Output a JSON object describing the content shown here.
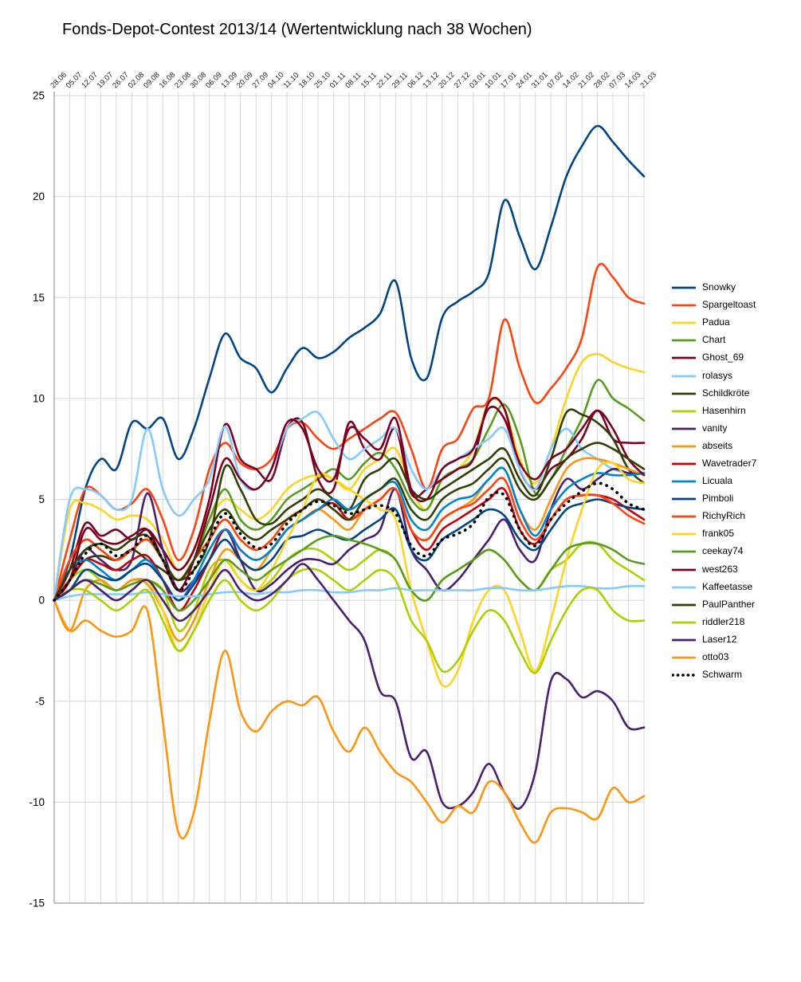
{
  "title": "Fonds-Depot-Contest 2013/14 (Wertentwicklung nach 38 Wochen)",
  "chart_data": {
    "type": "line",
    "title": "Fonds-Depot-Contest 2013/14 (Wertentwicklung nach 38 Wochen)",
    "xlabel": "",
    "ylabel": "",
    "ylim": [
      -15,
      25
    ],
    "yticks": [
      -15,
      -10,
      -5,
      0,
      5,
      10,
      15,
      20,
      25
    ],
    "grid": true,
    "legend_position": "right",
    "grid_color": "#d8d8d8",
    "axis_color": "#9a9a9a",
    "x": [
      "28.06",
      "05.07",
      "12.07",
      "19.07",
      "26.07",
      "02.08",
      "09.08",
      "16.08",
      "23.08",
      "30.08",
      "06.09",
      "13.09",
      "20.09",
      "27.09",
      "04.10",
      "11.10",
      "18.10",
      "25.10",
      "01.11",
      "08.11",
      "15.11",
      "22.11",
      "29.11",
      "06.12",
      "13.12",
      "20.12",
      "27.12",
      "03.01",
      "10.01",
      "17.01",
      "24.01",
      "31.01",
      "07.02",
      "14.02",
      "21.02",
      "28.02",
      "07.03",
      "14.03",
      "21.03"
    ],
    "series": [
      {
        "name": "Snowky",
        "color": "#004586",
        "style": "solid",
        "values": [
          0,
          2,
          5.5,
          7,
          6.5,
          8.8,
          8.5,
          9,
          7,
          8.5,
          11,
          13.2,
          12,
          11.5,
          10.3,
          11.5,
          12.5,
          12,
          12.3,
          13,
          13.5,
          14.2,
          15.8,
          12,
          11,
          14,
          14.8,
          15.3,
          16.2,
          19.8,
          18,
          16.4,
          18.5,
          21,
          22.5,
          23.5,
          22.7,
          21.8,
          21
        ]
      },
      {
        "name": "Spargeltoast",
        "color": "#FF420E",
        "style": "solid",
        "values": [
          0,
          3,
          5.5,
          5.2,
          4.5,
          4.8,
          5.5,
          4,
          2,
          3.5,
          6.5,
          7.8,
          6.8,
          6.5,
          7,
          8.5,
          8.8,
          8,
          7.5,
          8,
          8.5,
          9,
          9.3,
          7.5,
          5.5,
          7.5,
          8,
          9.5,
          10,
          13.9,
          11.5,
          9.8,
          10.5,
          11.5,
          13,
          16.5,
          16,
          15,
          14.7
        ]
      },
      {
        "name": "Padua",
        "color": "#FFD320",
        "style": "solid",
        "values": [
          0,
          4.5,
          4.8,
          4.5,
          4,
          4.2,
          4,
          3,
          1.5,
          2.5,
          4,
          5,
          4.5,
          4,
          4.5,
          5.5,
          6,
          6.2,
          6,
          5.5,
          6.5,
          7,
          7.5,
          5.5,
          4.5,
          6,
          6.5,
          7.5,
          9.8,
          9.5,
          7,
          5.8,
          7.5,
          10,
          11.8,
          12.2,
          11.8,
          11.5,
          11.3
        ]
      },
      {
        "name": "Chart",
        "color": "#579D1C",
        "style": "solid",
        "values": [
          0,
          2,
          3,
          2.5,
          2,
          2.5,
          3,
          2,
          1,
          2,
          4,
          5.5,
          4,
          3.5,
          4,
          5,
          5.5,
          6,
          6.5,
          6,
          6.8,
          7.3,
          6.5,
          5,
          4.5,
          6,
          6.5,
          7,
          8.5,
          9.7,
          8,
          5.3,
          6,
          7.5,
          9,
          10.9,
          10,
          9.5,
          8.9
        ]
      },
      {
        "name": "Ghost_69",
        "color": "#7E0021",
        "style": "solid",
        "values": [
          0,
          1.5,
          3.8,
          3.2,
          3.5,
          3,
          3.5,
          2.5,
          1.5,
          2.5,
          5,
          8.7,
          7,
          6.5,
          6,
          8.5,
          8.8,
          6,
          5.5,
          8.8,
          7.5,
          7,
          8.5,
          5.3,
          5.5,
          6,
          6.5,
          7,
          9.8,
          9.5,
          6.5,
          5.5,
          6.5,
          7,
          8,
          9.4,
          8,
          7.8,
          7.8
        ]
      },
      {
        "name": "rolasys",
        "color": "#83CAFF",
        "style": "solid",
        "values": [
          0,
          5,
          5.5,
          5.2,
          4.5,
          5,
          8.5,
          5.5,
          4.2,
          5,
          6,
          8.6,
          6,
          5.5,
          6.5,
          8.5,
          9,
          9.3,
          8,
          7,
          7.5,
          8,
          8.5,
          6.5,
          5.5,
          6.5,
          7,
          7.5,
          8,
          8.5,
          6.5,
          5.5,
          7.5,
          8.5,
          7.5,
          7,
          6.5,
          6.3,
          6.3
        ]
      },
      {
        "name": "Schildkröte",
        "color": "#314004",
        "style": "solid",
        "values": [
          0,
          1,
          2,
          2.2,
          2,
          2.5,
          2,
          1.5,
          1,
          1.5,
          3,
          6.6,
          5.5,
          4,
          3.8,
          4.5,
          5,
          5.5,
          5,
          4.5,
          6,
          6.5,
          7,
          5.5,
          5,
          5.5,
          6,
          6.5,
          7,
          7.5,
          6,
          5.2,
          7,
          9.3,
          9.2,
          8.8,
          8,
          6.5,
          5.8
        ]
      },
      {
        "name": "Hasenhirn",
        "color": "#AECF00",
        "style": "solid",
        "values": [
          0,
          1,
          1.5,
          1,
          0.5,
          1,
          1,
          0.5,
          -1.5,
          -0.5,
          1.5,
          2,
          1,
          0.5,
          1,
          2,
          2.5,
          2.5,
          2,
          1.5,
          2,
          2.5,
          2,
          0.5,
          0,
          1,
          1.5,
          2,
          2.5,
          2,
          1,
          0.5,
          1.5,
          2,
          2.8,
          2.8,
          2,
          1.5,
          1
        ]
      },
      {
        "name": "vanity",
        "color": "#4B1F6F",
        "style": "solid",
        "values": [
          0,
          1,
          2.5,
          2,
          1.5,
          2,
          5.3,
          2.5,
          0.5,
          1,
          2,
          3.5,
          2,
          0.5,
          0.8,
          1.5,
          2,
          2,
          1.8,
          2.5,
          3,
          3.5,
          5.5,
          2.5,
          1.5,
          0.5,
          1,
          2,
          3,
          4,
          2.5,
          2,
          4.5,
          6,
          5.5,
          6,
          6.5,
          6.3,
          6.3
        ]
      },
      {
        "name": "abseits",
        "color": "#FF950E",
        "style": "solid",
        "values": [
          0,
          -1.5,
          0.5,
          1,
          0.5,
          1,
          0.8,
          -0.5,
          -2,
          -1,
          1,
          2.5,
          2,
          1.5,
          2.5,
          3.5,
          4,
          4.5,
          4,
          3.5,
          4.5,
          5,
          5.5,
          3.5,
          3,
          4,
          4.5,
          5,
          6,
          6.5,
          4.5,
          3.5,
          5,
          6.5,
          7,
          7,
          6.8,
          6.5,
          6.2
        ]
      },
      {
        "name": "Wavetrader7",
        "color": "#C5000B",
        "style": "solid",
        "values": [
          0,
          1,
          2,
          1.8,
          1.5,
          2,
          2.2,
          1,
          -0.5,
          0.5,
          2,
          3.5,
          2.5,
          2,
          2.5,
          3.5,
          4,
          4.5,
          4.8,
          4,
          4.5,
          5,
          5.5,
          3.5,
          2.5,
          3.5,
          4,
          4.5,
          5,
          5.5,
          3.5,
          2.8,
          4,
          5,
          5.2,
          5.2,
          5,
          4.5,
          4
        ]
      },
      {
        "name": "Licuala",
        "color": "#0084D1",
        "style": "solid",
        "values": [
          0,
          1.5,
          2,
          1.5,
          1,
          1.5,
          2,
          1,
          0,
          1,
          2.5,
          3.5,
          2.5,
          2,
          2.5,
          3.5,
          4,
          4.5,
          5,
          4.5,
          5,
          5.5,
          5.8,
          4,
          3.5,
          4.5,
          5,
          5.2,
          6,
          6.5,
          4.5,
          3.2,
          4.5,
          5.5,
          6,
          6.3,
          6.2,
          6.2,
          6.3
        ]
      },
      {
        "name": "Pimboli",
        "color": "#004586",
        "style": "solid",
        "values": [
          0,
          0.5,
          1.5,
          1.2,
          1,
          1.5,
          1.8,
          1,
          0,
          0.8,
          2,
          3,
          2,
          1.5,
          2,
          3,
          3.2,
          3.5,
          3.2,
          3,
          3.5,
          4,
          4.5,
          2.5,
          2,
          3,
          3.5,
          4,
          4.5,
          4.2,
          3,
          2.5,
          3.5,
          4.5,
          4.8,
          5,
          4.8,
          4.6,
          4.5
        ]
      },
      {
        "name": "RichyRich",
        "color": "#FF420E",
        "style": "solid",
        "values": [
          0,
          2,
          3,
          2.5,
          2,
          2.5,
          3,
          2,
          1,
          2,
          3,
          4,
          3,
          2.5,
          3,
          4,
          4.5,
          5,
          4.5,
          4,
          4.5,
          5,
          5.5,
          3.5,
          3,
          4,
          4.5,
          4.8,
          5.5,
          6,
          4,
          3,
          4,
          5,
          5.2,
          5.2,
          4.8,
          4.2,
          3.8
        ]
      },
      {
        "name": "frank05",
        "color": "#FFD320",
        "style": "solid",
        "values": [
          0,
          0.5,
          1,
          0.5,
          0,
          0.5,
          1,
          -0.5,
          -2.5,
          -1.5,
          0.5,
          2,
          1,
          0.5,
          1.5,
          3,
          4.5,
          6.2,
          6,
          5.5,
          5,
          4.5,
          4,
          0.5,
          -2,
          -4.2,
          -3.5,
          -1,
          0.5,
          0.5,
          -1.5,
          -3.5,
          -1,
          2,
          4.5,
          6.5,
          6.8,
          6,
          5.8
        ]
      },
      {
        "name": "ceekay74",
        "color": "#579D1C",
        "style": "solid",
        "values": [
          0,
          0.5,
          1,
          0.8,
          0.5,
          0.8,
          1,
          0.5,
          -0.5,
          0,
          1,
          2,
          1.5,
          1,
          1.5,
          2,
          2.5,
          3,
          3.2,
          3,
          2.8,
          2.5,
          2,
          0.5,
          0,
          1,
          1.5,
          2,
          2.5,
          2,
          1,
          0.5,
          1.5,
          2.5,
          2.8,
          2.8,
          2.5,
          2,
          1.8
        ]
      },
      {
        "name": "west263",
        "color": "#7E0021",
        "style": "solid",
        "values": [
          0,
          1,
          3.5,
          3,
          2.8,
          3.2,
          3.5,
          2,
          0.5,
          2,
          4.5,
          7,
          6,
          5.5,
          6.5,
          8.8,
          8.5,
          6.5,
          6,
          8.5,
          8,
          7.5,
          9,
          5.5,
          5,
          6.5,
          7,
          7.5,
          9.5,
          9,
          6.8,
          6,
          7,
          7.5,
          8.5,
          9.4,
          8.5,
          7,
          6.2
        ]
      },
      {
        "name": "Kaffeetasse",
        "color": "#83CAFF",
        "style": "solid",
        "values": [
          0,
          0.2,
          0.3,
          0.3,
          0.3,
          0.3,
          0.4,
          0.3,
          0.2,
          0.2,
          0.3,
          0.4,
          0.4,
          0.3,
          0.4,
          0.4,
          0.5,
          0.5,
          0.4,
          0.4,
          0.5,
          0.5,
          0.6,
          0.5,
          0.5,
          0.5,
          0.5,
          0.5,
          0.6,
          0.6,
          0.5,
          0.5,
          0.6,
          0.7,
          0.7,
          0.6,
          0.6,
          0.7,
          0.7
        ]
      },
      {
        "name": "PaulPanther",
        "color": "#314004",
        "style": "solid",
        "values": [
          0,
          1.5,
          2.5,
          2.8,
          2.5,
          3,
          3.2,
          2,
          1,
          2,
          3.5,
          4.5,
          3.5,
          3,
          3.5,
          4,
          4.5,
          5,
          4.5,
          4,
          5,
          5.5,
          6,
          4.5,
          4,
          5,
          5.5,
          5.8,
          6.5,
          7,
          5.5,
          5,
          6,
          7,
          7.5,
          7.8,
          7.5,
          7,
          6.5
        ]
      },
      {
        "name": "riddler218",
        "color": "#AECF00",
        "style": "solid",
        "values": [
          0,
          0.5,
          0.5,
          0,
          -0.5,
          0,
          0.5,
          -1,
          -2.5,
          -1.5,
          0,
          1,
          0,
          -0.5,
          0,
          1,
          1.5,
          1.5,
          1,
          0.5,
          1,
          1.5,
          1,
          -1,
          -2,
          -3.5,
          -3,
          -1.5,
          -0.5,
          -1,
          -2.5,
          -3.6,
          -2,
          -0.5,
          0.5,
          0.5,
          -0.5,
          -1,
          -1
        ]
      },
      {
        "name": "Laser12",
        "color": "#4B1F6F",
        "style": "solid",
        "values": [
          0,
          0.5,
          1,
          0.5,
          0,
          0.5,
          1,
          0,
          -1,
          -0.5,
          0.5,
          1.5,
          0.5,
          0,
          0.3,
          1,
          1.8,
          1,
          0,
          -1,
          -2,
          -4.5,
          -5,
          -7.8,
          -7.5,
          -10,
          -10.2,
          -9.5,
          -8.1,
          -9.5,
          -10.3,
          -8.5,
          -4,
          -3.9,
          -4.8,
          -4.5,
          -5,
          -6.3,
          -6.3
        ]
      },
      {
        "name": "otto03",
        "color": "#FF950E",
        "style": "solid",
        "values": [
          0,
          -1.5,
          -1,
          -1.5,
          -1.8,
          -1.5,
          -0.5,
          -6,
          -11.5,
          -10.5,
          -6,
          -2.5,
          -5.5,
          -6.5,
          -5.5,
          -5,
          -5.2,
          -4.8,
          -6.5,
          -7.5,
          -6.3,
          -7.5,
          -8.5,
          -9,
          -10,
          -11,
          -10.2,
          -10.5,
          -9,
          -9.5,
          -11,
          -12,
          -10.5,
          -10.3,
          -10.5,
          -10.8,
          -9.3,
          -10,
          -9.7
        ]
      },
      {
        "name": "Schwarm",
        "color": "#000000",
        "style": "dotted",
        "values": [
          0,
          1,
          2.3,
          2.8,
          2.2,
          2.5,
          3.2,
          2,
          0.5,
          1.5,
          3,
          4.3,
          3.3,
          2.6,
          2.8,
          3.8,
          4.5,
          4.9,
          4.7,
          4.3,
          4.5,
          4.7,
          4.3,
          2.7,
          2.2,
          3,
          3.3,
          3.8,
          5.1,
          5.2,
          3.5,
          2.7,
          4,
          4.8,
          5.4,
          5.8,
          5.5,
          4.8,
          4.5
        ]
      }
    ]
  }
}
